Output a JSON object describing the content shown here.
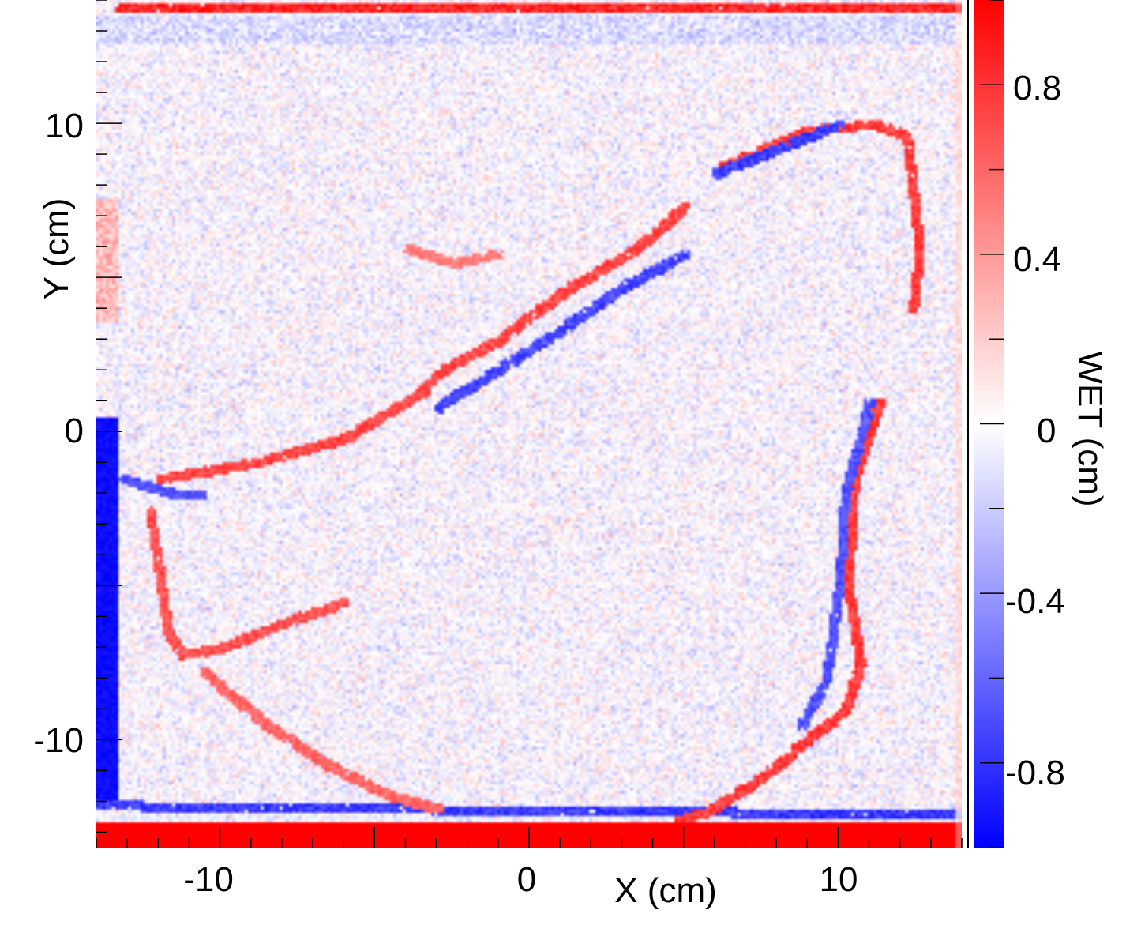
{
  "chart_data": {
    "type": "heatmap",
    "title": "",
    "xlabel": "X (cm)",
    "ylabel": "Y (cm)",
    "colorbar_label": "WET (cm)",
    "xlim": [
      -14,
      14
    ],
    "ylim": [
      -13.5,
      14
    ],
    "x_ticks": [
      {
        "value": -10,
        "label": "-10"
      },
      {
        "value": 0,
        "label": "0"
      },
      {
        "value": 10,
        "label": "10"
      }
    ],
    "y_ticks": [
      {
        "value": 10,
        "label": "10"
      },
      {
        "value": 0,
        "label": "0"
      },
      {
        "value": -10,
        "label": "-10"
      }
    ],
    "colorbar_range": [
      -1,
      1
    ],
    "colorbar_ticks": [
      {
        "value": 0.8,
        "label": "0.8"
      },
      {
        "value": 0.4,
        "label": "0.4"
      },
      {
        "value": 0,
        "label": "0"
      },
      {
        "value": -0.4,
        "label": "-0.4"
      },
      {
        "value": -0.8,
        "label": "-0.8"
      }
    ],
    "colormap": {
      "negative": "#0000ff",
      "zero": "#ffffff",
      "positive": "#ff0000"
    },
    "grid": false,
    "features": [
      {
        "name": "top-edge",
        "points": [
          [
            -13.3,
            13.8
          ],
          [
            14,
            13.8
          ]
        ],
        "value": 1.0
      },
      {
        "name": "bottom-band",
        "points": [
          [
            -14,
            -13.0
          ],
          [
            14,
            -13.0
          ]
        ],
        "value": 1.0
      },
      {
        "name": "bottom-blue-line",
        "points": [
          [
            -14,
            -12.1
          ],
          [
            14,
            -12.4
          ]
        ],
        "value": -0.9
      },
      {
        "name": "left-blue-strip",
        "points": [
          [
            -13.7,
            0
          ],
          [
            -13.7,
            -11.8
          ]
        ],
        "value": -1.0
      },
      {
        "name": "rim-upper-right",
        "points": [
          [
            6.2,
            8.6
          ],
          [
            9.0,
            9.8
          ],
          [
            11.2,
            10.0
          ],
          [
            12.2,
            9.6
          ],
          [
            12.6,
            6.0
          ],
          [
            12.4,
            4.0
          ]
        ],
        "value": 0.9
      },
      {
        "name": "rim-right",
        "points": [
          [
            11.3,
            1.0
          ],
          [
            10.5,
            -1.5
          ],
          [
            10.3,
            -5.0
          ],
          [
            10.7,
            -7.5
          ],
          [
            10.2,
            -9.0
          ],
          [
            9.2,
            -9.8
          ]
        ],
        "value": 0.9
      },
      {
        "name": "rim-lower-right",
        "points": [
          [
            9.2,
            -9.8
          ],
          [
            7.5,
            -11.2
          ],
          [
            5.8,
            -12.3
          ],
          [
            4.8,
            -12.6
          ]
        ],
        "value": 0.9
      },
      {
        "name": "rim-right-blue",
        "points": [
          [
            11.0,
            1.0
          ],
          [
            10.2,
            -2.0
          ],
          [
            10.0,
            -5.0
          ],
          [
            9.6,
            -8.0
          ],
          [
            8.8,
            -9.5
          ]
        ],
        "value": -0.8
      },
      {
        "name": "left-loop-red",
        "points": [
          [
            -12.3,
            -2.5
          ],
          [
            -12.0,
            -4.5
          ],
          [
            -11.7,
            -6.5
          ],
          [
            -11.2,
            -7.2
          ],
          [
            -10.0,
            -7.0
          ],
          [
            -8.0,
            -6.2
          ],
          [
            -6.0,
            -5.5
          ]
        ],
        "value": 0.8
      },
      {
        "name": "left-loop-blue",
        "points": [
          [
            -13.2,
            -1.5
          ],
          [
            -11.5,
            -2.0
          ],
          [
            -10.5,
            -2.0
          ]
        ],
        "value": -0.8
      },
      {
        "name": "lower-left-diagonal",
        "points": [
          [
            -10.5,
            -7.8
          ],
          [
            -8.5,
            -9.5
          ],
          [
            -6.5,
            -10.8
          ],
          [
            -4.5,
            -11.8
          ],
          [
            -3.0,
            -12.2
          ]
        ],
        "value": 0.7
      },
      {
        "name": "central-diagonal-red",
        "points": [
          [
            -12.0,
            -1.5
          ],
          [
            -9.0,
            -1.0
          ],
          [
            -6.0,
            -0.2
          ],
          [
            -3.5,
            1.3
          ],
          [
            -3.0,
            1.9
          ],
          [
            -1.0,
            3.0
          ],
          [
            1.0,
            4.5
          ],
          [
            3.5,
            6.0
          ],
          [
            5.0,
            7.3
          ]
        ],
        "value": 0.85
      },
      {
        "name": "central-diagonal-blue",
        "points": [
          [
            -3.0,
            0.8
          ],
          [
            0.5,
            3.0
          ],
          [
            3.0,
            4.7
          ],
          [
            5.0,
            5.8
          ]
        ],
        "value": -0.85
      },
      {
        "name": "upper-diagonal-blue",
        "points": [
          [
            6.0,
            8.4
          ],
          [
            8.0,
            9.2
          ],
          [
            10.0,
            10.0
          ]
        ],
        "value": -0.9
      },
      {
        "name": "small-red-arc",
        "points": [
          [
            -4.0,
            6.0
          ],
          [
            -2.5,
            5.5
          ],
          [
            -1.0,
            5.8
          ]
        ],
        "value": 0.6
      }
    ]
  }
}
